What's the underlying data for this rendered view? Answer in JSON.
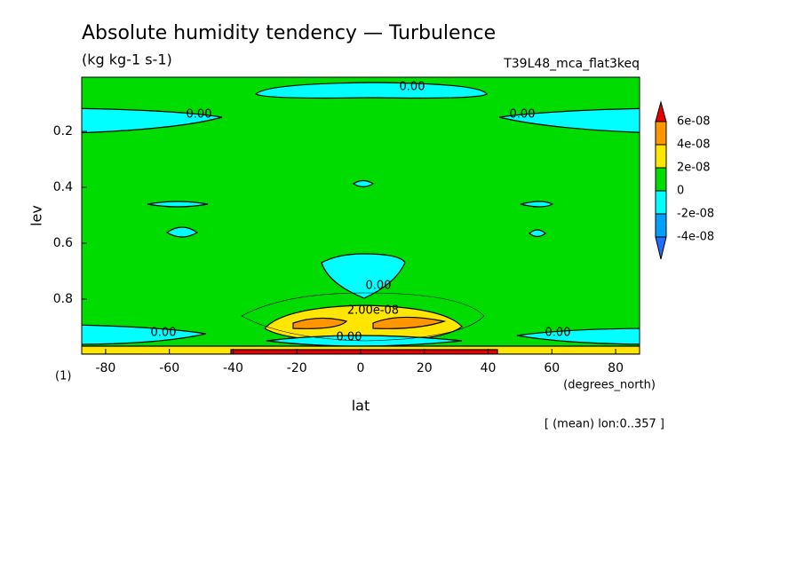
{
  "chart_data": {
    "type": "contour",
    "title": "Absolute humidity tendency — Turbulence",
    "subtitle": "(kg kg-1 s-1)",
    "run_label": "T39L48_mca_flat3keq",
    "x_label": "lat",
    "x_units": "(degrees_north)",
    "y_label": "lev",
    "y_units": "(1)",
    "note": "[ (mean) lon:0..357 ]",
    "xlim": [
      -87.5,
      87.5
    ],
    "xticks": [
      -80,
      -60,
      -40,
      -20,
      0,
      20,
      40,
      60,
      80
    ],
    "ylim": [
      0.006,
      0.997
    ],
    "y_reversed": true,
    "yticks": [
      0.2,
      0.4,
      0.6,
      0.8
    ],
    "colorbar": {
      "ticks": [
        {
          "value": -4e-08,
          "label": "-4e-08"
        },
        {
          "value": -2e-08,
          "label": "-2e-08"
        },
        0,
        {
          "value": 2e-08,
          "label": "2e-08"
        },
        {
          "value": 4e-08,
          "label": "4e-08"
        },
        {
          "value": 6e-08,
          "label": "6e-08"
        }
      ],
      "colors": [
        "#1e6eff",
        "#00a0ff",
        "#00ffff",
        "#00dc00",
        "#ffe600",
        "#ff9600",
        "#e60000"
      ]
    },
    "contour_labels": [
      "0.00",
      "0.00",
      "0.00",
      "0.00",
      "0.00",
      "0.00",
      "2.00e-08",
      "0.00"
    ]
  }
}
